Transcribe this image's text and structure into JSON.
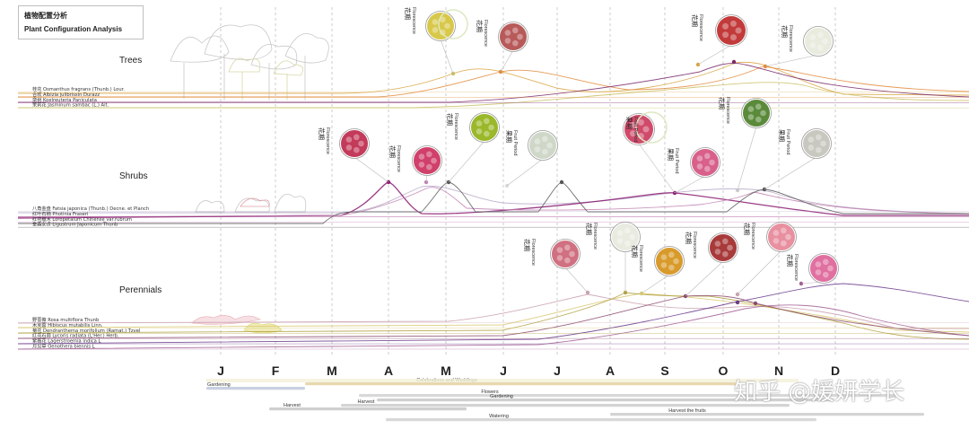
{
  "header": {
    "title_cn": "植物配置分析",
    "title_en": "Plant Configuration Analysis"
  },
  "sections": [
    {
      "label": "Trees",
      "plants": [
        {
          "name": "桂花 Osmanthus fragrans (Thunb.) Lour.",
          "color": "#d9a441"
        },
        {
          "name": "合欢 Albizia julibrissin Durazz",
          "color": "#e08a3a"
        },
        {
          "name": "栾树 Koelreuteria Paniculata",
          "color": "#7a2a6a"
        },
        {
          "name": "茉莉花 Jasminum sambac (L.) Ait.",
          "color": "#c9c060"
        }
      ]
    },
    {
      "label": "Shrubs",
      "plants": [
        {
          "name": "八角金盘 Fatsia japonica (Thunb.) Decne. et Planch",
          "color": "#b8a8c8"
        },
        {
          "name": "红叶石楠 Photinia Fraseri",
          "color": "#8a1a70"
        },
        {
          "name": "红花檵木 Loropetalum Chinense var.rubrum",
          "color": "#c080b0"
        },
        {
          "name": "金森女贞 Ligustrum Japonicum Thunb",
          "color": "#555555"
        }
      ]
    },
    {
      "label": "Perennials",
      "plants": [
        {
          "name": "野蔷薇 Rosa multiflora Thunb",
          "color": "#c9a0b0"
        },
        {
          "name": "木芙蓉 Hibiscus mutabilis Linn.",
          "color": "#d8c870"
        },
        {
          "name": "菊花 Dendranthema morifolium (Ramat.) Tzvel",
          "color": "#b0a040"
        },
        {
          "name": "红花石蒜 Lycoris radiata (L'Her.) Herb.",
          "color": "#8a4a70"
        },
        {
          "name": "紫薇花 Lagerstroemia indica L",
          "color": "#6a3a8a"
        },
        {
          "name": "月见草 Oenothera biennis L",
          "color": "#a05a90"
        }
      ]
    }
  ],
  "months": [
    "J",
    "F",
    "M",
    "A",
    "M",
    "J",
    "J",
    "A",
    "S",
    "O",
    "N",
    "D"
  ],
  "annotations": [
    {
      "cn": "花期",
      "en": "Florescence",
      "photo": "flower-photo-white-yellow",
      "fill": "#d8c84a"
    },
    {
      "cn": "花期",
      "en": "Florescence",
      "photo": "flower-photo-pink-shrub",
      "fill": "#b85a5a"
    },
    {
      "cn": "花期",
      "en": "Florescence",
      "photo": "flower-photo-red-tree",
      "fill": "#c23a3a"
    },
    {
      "cn": "花期",
      "en": "Florescence",
      "photo": "flower-photo-white-jasmine",
      "fill": "#e8ecde"
    },
    {
      "cn": "花期",
      "en": "Florescence",
      "photo": "flower-photo-red-leaves",
      "fill": "#c33a5a"
    },
    {
      "cn": "花期",
      "en": "Florescence",
      "photo": "flower-photo-pink-cluster",
      "fill": "#d0406a"
    },
    {
      "cn": "花期",
      "en": "Florescence",
      "photo": "flower-photo-green-bud",
      "fill": "#9ab82a"
    },
    {
      "cn": "果期",
      "en": "Fruit Period",
      "photo": "flower-photo-white-bloom",
      "fill": "#cfd8c8"
    },
    {
      "cn": "果期",
      "en": "Fruit Period",
      "photo": "flower-photo-red-field",
      "fill": "#d04a6a"
    },
    {
      "cn": "果期",
      "en": "Fruit Period",
      "photo": "flower-photo-pink-spray",
      "fill": "#d8608a"
    },
    {
      "cn": "花期",
      "en": "Florescence",
      "photo": "flower-photo-green-leaves",
      "fill": "#5a8a3a"
    },
    {
      "cn": "果期",
      "en": "Fruit Period",
      "photo": "flower-photo-white-seed",
      "fill": "#c8c8c0"
    },
    {
      "cn": "花期",
      "en": "Florescence",
      "photo": "flower-photo-pink-rose",
      "fill": "#d07080"
    },
    {
      "cn": "花期",
      "en": "Florescence",
      "photo": "flower-photo-white-hibiscus",
      "fill": "#e8ece0"
    },
    {
      "cn": "花期",
      "en": "Florescence",
      "photo": "flower-photo-yellow-mum",
      "fill": "#d89a2a"
    },
    {
      "cn": "花期",
      "en": "Florescence",
      "photo": "flower-photo-red-lycoris",
      "fill": "#a83a3a"
    },
    {
      "cn": "花期",
      "en": "Florescence",
      "photo": "flower-photo-pink-crape",
      "fill": "#e890a0"
    },
    {
      "cn": "花期",
      "en": "Florescence",
      "photo": "flower-photo-pink-evening",
      "fill": "#e070a0"
    }
  ],
  "activities": [
    {
      "label": "Gardening",
      "color": "#c8d0e0"
    },
    {
      "label": "Celebrations and Weddings",
      "color": "#e8d8b0"
    },
    {
      "label": "Flowers",
      "color": "#d8d8d8"
    },
    {
      "label": "Gardening",
      "color": "#d0d0d0"
    },
    {
      "label": "Harvest",
      "color": "#cfcfcf"
    },
    {
      "label": "Harvest",
      "color": "#d4d4d4"
    },
    {
      "label": "Harvest the fruits",
      "color": "#d4d4d4"
    },
    {
      "label": "Watering",
      "color": "#d8d8d8"
    }
  ],
  "watermark": "知乎 @媛妍学长"
}
